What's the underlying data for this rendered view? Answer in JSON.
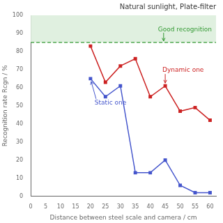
{
  "chart_data": {
    "type": "line",
    "title": "Natural sunlight, Plate-filter",
    "x_label": "Distance between steel scale and camera / cm",
    "y_label": "Recognition rate Rcgn / %",
    "xlim": [
      0,
      62
    ],
    "ylim": [
      0,
      100
    ],
    "xticks": [
      0,
      5,
      10,
      15,
      20,
      25,
      30,
      35,
      40,
      45,
      50,
      55,
      60
    ],
    "yticks": [
      0,
      10,
      20,
      30,
      40,
      50,
      60,
      70,
      80,
      90,
      100
    ],
    "grid": false,
    "x": [
      20,
      25,
      30,
      35,
      40,
      45,
      50,
      55,
      60
    ],
    "series": [
      {
        "name": "Static one",
        "color": "#4455cc",
        "marker": "square",
        "line_style": "solid",
        "values": [
          65,
          55,
          61,
          13,
          13,
          20,
          6,
          2,
          2
        ]
      },
      {
        "name": "Dynamic one",
        "color": "#cc2222",
        "marker": "square",
        "line_style": "solid",
        "values": [
          83,
          63,
          72,
          76,
          55,
          61,
          47,
          49,
          42
        ]
      }
    ],
    "annotations": [
      {
        "type": "band",
        "y": [
          85,
          100
        ],
        "color": "#e0f0e0"
      },
      {
        "type": "hline",
        "y": 85,
        "text": "Good recognition",
        "color": "#339933",
        "line_style": "dashed"
      },
      {
        "type": "arrow",
        "text": "Static one",
        "x": 20,
        "y": 65,
        "color": "#4455cc"
      },
      {
        "type": "arrow",
        "text": "Dynamic one",
        "x": 45,
        "y": 61,
        "color": "#cc2222"
      }
    ]
  }
}
